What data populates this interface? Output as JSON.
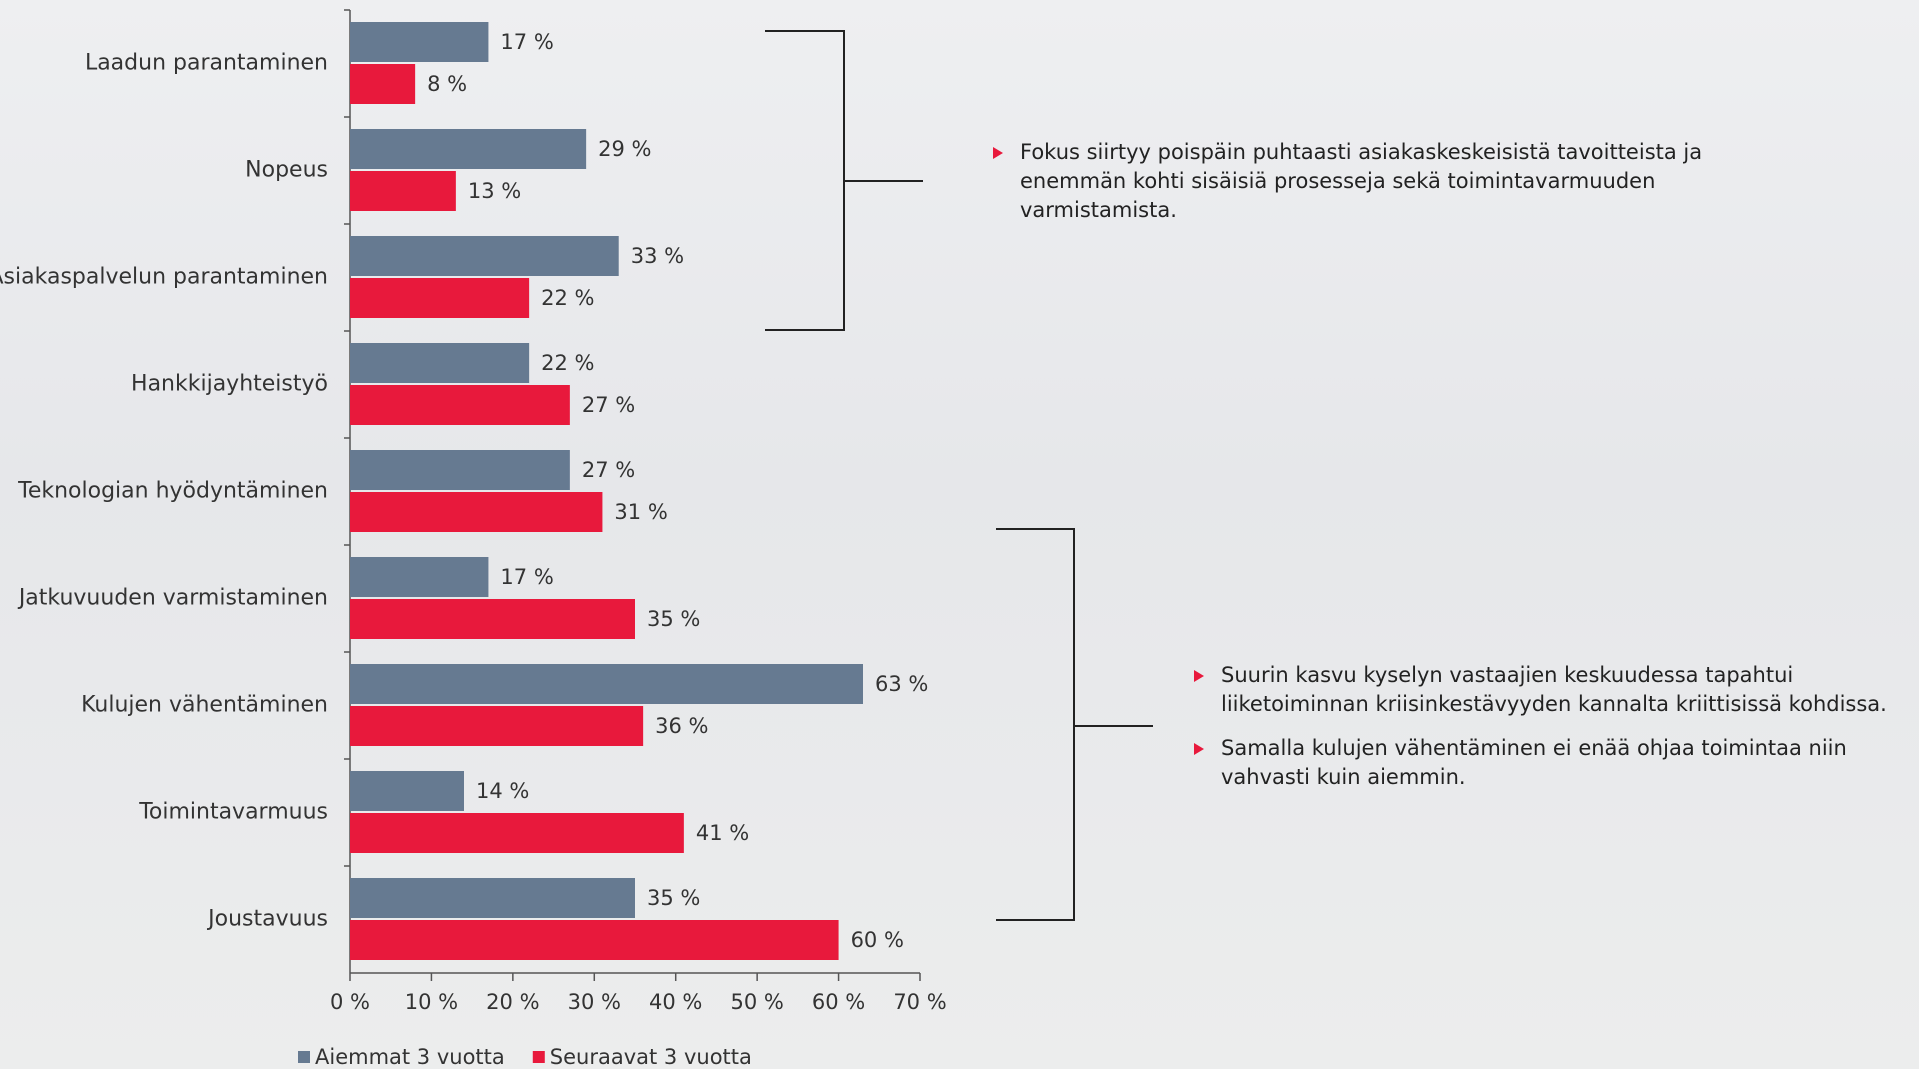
{
  "chart_data": {
    "type": "hbar",
    "categories": [
      "Laadun parantaminen",
      "Nopeus",
      "Asiakaspalvelun parantaminen",
      "Hankkijayhteistyö",
      "Teknologian hyödyntäminen",
      "Jatkuvuuden varmistaminen",
      "Kulujen vähentäminen",
      "Toimintavarmuus",
      "Joustavuus"
    ],
    "series": [
      {
        "name": "Aiemmat 3 vuotta",
        "color": "#667a91",
        "values": [
          17,
          29,
          33,
          22,
          27,
          17,
          63,
          14,
          35
        ],
        "value_labels": [
          "17 %",
          "29 %",
          "33 %",
          "22 %",
          "27 %",
          "17 %",
          "63 %",
          "14 %",
          "35 %"
        ]
      },
      {
        "name": "Seuraavat 3 vuotta",
        "color": "#e8193c",
        "values": [
          8,
          13,
          22,
          27,
          31,
          35,
          36,
          41,
          60
        ],
        "value_labels": [
          "8 %",
          "13 %",
          "22 %",
          "27 %",
          "31 %",
          "35 %",
          "36 %",
          "41 %",
          "60 %"
        ]
      }
    ],
    "xlim": [
      0,
      70
    ],
    "xticks": [
      {
        "value": 0,
        "label": "0 %"
      },
      {
        "value": 10,
        "label": "10 %"
      },
      {
        "value": 20,
        "label": "20 %"
      },
      {
        "value": 30,
        "label": "30 %"
      },
      {
        "value": 40,
        "label": "40 %"
      },
      {
        "value": 50,
        "label": "50 %"
      },
      {
        "value": 60,
        "label": "60 %"
      },
      {
        "value": 70,
        "label": "70 %"
      }
    ],
    "legend": "bottom-left",
    "annotations": [
      {
        "bullets": [
          [
            "Fokus siirtyy poispäin puhtaasti asiakaskeskeisistä tavoitteista ja",
            "enemmän kohti sisäisiä prosesseja sekä toimintavarmuuden",
            "varmistamista."
          ]
        ]
      },
      {
        "bullets": [
          [
            "Suurin kasvu kyselyn vastaajien keskuudessa tapahtui",
            "liiketoiminnan kriisinkestävyyden kannalta kriittisissä kohdissa."
          ],
          [
            "Samalla kulujen vähentäminen ei enää ohjaa toimintaa niin",
            "vahvasti kuin aiemmin."
          ]
        ]
      }
    ]
  }
}
